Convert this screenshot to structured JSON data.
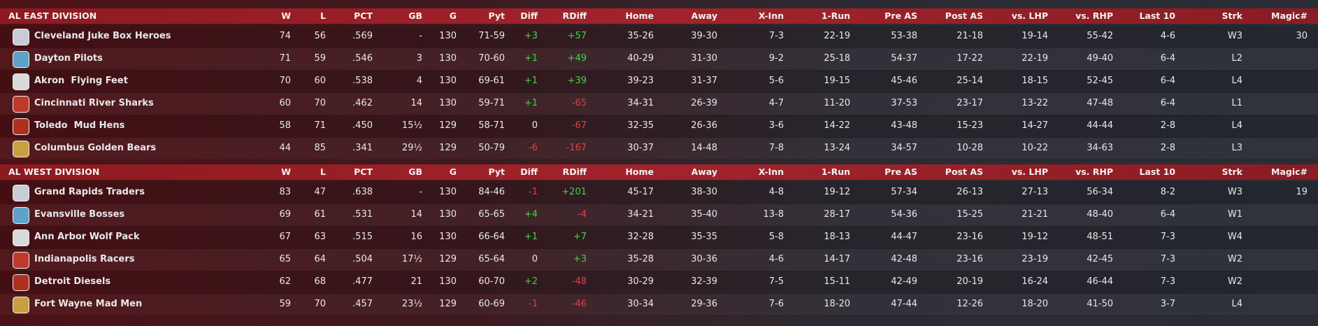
{
  "divisions": [
    {
      "title": "AL EAST DIVISION",
      "columns": [
        "W",
        "L",
        "PCT",
        "GB",
        "G",
        "Pyt",
        "Diff",
        "RDiff",
        "Home",
        "Away",
        "X-Inn",
        "1-Run",
        "Pre AS",
        "Post AS",
        "vs. LHP",
        "vs. RHP",
        "Last 10",
        "Strk",
        "Magic#"
      ],
      "rows": [
        {
          "name": "Cleveland Juke Box Heroes",
          "cells": [
            "74",
            "56",
            ".569",
            "-",
            "130",
            "71-59",
            "+3",
            "+57",
            "35-26",
            "39-30",
            "7-3",
            "22-19",
            "53-38",
            "21-18",
            "19-14",
            "55-42",
            "4-6",
            "W3",
            "30"
          ]
        },
        {
          "name": "Dayton Pilots",
          "cells": [
            "71",
            "59",
            ".546",
            "3",
            "130",
            "70-60",
            "+1",
            "+49",
            "40-29",
            "31-30",
            "9-2",
            "25-18",
            "54-37",
            "17-22",
            "22-19",
            "49-40",
            "6-4",
            "L2"
          ]
        },
        {
          "name": "Akron  Flying Feet",
          "cells": [
            "70",
            "60",
            ".538",
            "4",
            "130",
            "69-61",
            "+1",
            "+39",
            "39-23",
            "31-37",
            "5-6",
            "19-15",
            "45-46",
            "25-14",
            "18-15",
            "52-45",
            "6-4",
            "L4"
          ]
        },
        {
          "name": "Cincinnati River Sharks",
          "cells": [
            "60",
            "70",
            ".462",
            "14",
            "130",
            "59-71",
            "+1",
            "-65",
            "34-31",
            "26-39",
            "4-7",
            "11-20",
            "37-53",
            "23-17",
            "13-22",
            "47-48",
            "6-4",
            "L1"
          ]
        },
        {
          "name": "Toledo  Mud Hens",
          "cells": [
            "58",
            "71",
            ".450",
            "15½",
            "129",
            "58-71",
            "0",
            "-67",
            "32-35",
            "26-36",
            "3-6",
            "14-22",
            "43-48",
            "15-23",
            "14-27",
            "44-44",
            "2-8",
            "L4"
          ]
        },
        {
          "name": "Columbus Golden Bears",
          "cells": [
            "44",
            "85",
            ".341",
            "29½",
            "129",
            "50-79",
            "-6",
            "-167",
            "30-37",
            "14-48",
            "7-8",
            "13-24",
            "34-57",
            "10-28",
            "10-22",
            "34-63",
            "2-8",
            "L3"
          ]
        }
      ]
    },
    {
      "title": "AL WEST DIVISION",
      "columns": [
        "W",
        "L",
        "PCT",
        "GB",
        "G",
        "Pyt",
        "Diff",
        "RDiff",
        "Home",
        "Away",
        "X-Inn",
        "1-Run",
        "Pre AS",
        "Post AS",
        "vs. LHP",
        "vs. RHP",
        "Last 10",
        "Strk",
        "Magic#"
      ],
      "rows": [
        {
          "name": "Grand Rapids Traders",
          "cells": [
            "83",
            "47",
            ".638",
            "-",
            "130",
            "84-46",
            "-1",
            "+201",
            "45-17",
            "38-30",
            "4-8",
            "19-12",
            "57-34",
            "26-13",
            "27-13",
            "56-34",
            "8-2",
            "W3",
            "19"
          ]
        },
        {
          "name": "Evansville Bosses",
          "cells": [
            "69",
            "61",
            ".531",
            "14",
            "130",
            "65-65",
            "+4",
            "-4",
            "34-21",
            "35-40",
            "13-8",
            "28-17",
            "54-36",
            "15-25",
            "21-21",
            "48-40",
            "6-4",
            "W1"
          ]
        },
        {
          "name": "Ann Arbor Wolf Pack",
          "cells": [
            "67",
            "63",
            ".515",
            "16",
            "130",
            "66-64",
            "+1",
            "+7",
            "32-28",
            "35-35",
            "5-8",
            "18-13",
            "44-47",
            "23-16",
            "19-12",
            "48-51",
            "7-3",
            "W4"
          ]
        },
        {
          "name": "Indianapolis Racers",
          "cells": [
            "65",
            "64",
            ".504",
            "17½",
            "129",
            "65-64",
            "0",
            "+3",
            "35-28",
            "30-36",
            "4-6",
            "14-17",
            "42-48",
            "23-16",
            "23-19",
            "42-45",
            "7-3",
            "W2"
          ]
        },
        {
          "name": "Detroit Diesels",
          "cells": [
            "62",
            "68",
            ".477",
            "21",
            "130",
            "60-70",
            "+2",
            "-48",
            "30-29",
            "32-39",
            "7-5",
            "15-11",
            "42-49",
            "20-19",
            "16-24",
            "46-44",
            "7-3",
            "W2"
          ]
        },
        {
          "name": "Fort Wayne Mad Men",
          "cells": [
            "59",
            "70",
            ".457",
            "23½",
            "129",
            "60-69",
            "-1",
            "-46",
            "30-34",
            "29-36",
            "7-6",
            "18-20",
            "47-44",
            "12-26",
            "18-20",
            "41-50",
            "3-7",
            "L4"
          ]
        }
      ]
    }
  ]
}
